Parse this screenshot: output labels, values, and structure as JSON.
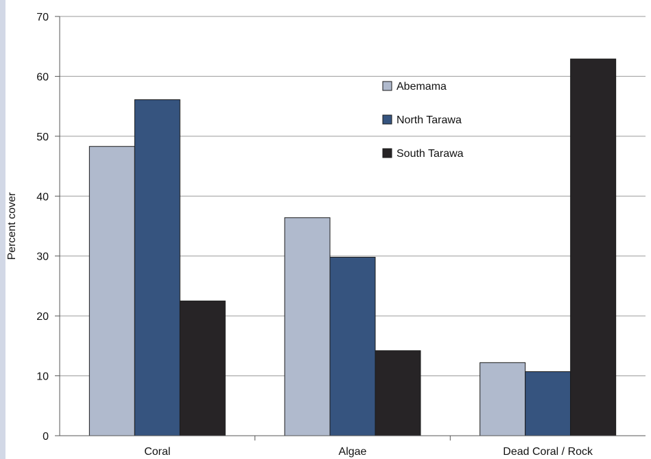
{
  "chart_data": {
    "type": "bar",
    "title": "",
    "xlabel": "",
    "ylabel": "Percent cover",
    "categories": [
      "Coral",
      "Algae",
      "Dead Coral / Rock"
    ],
    "series": [
      {
        "name": "Abemama",
        "color": "#b0bacd",
        "values": [
          48.3,
          36.4,
          12.2
        ]
      },
      {
        "name": "North Tarawa",
        "color": "#36547f",
        "values": [
          56.1,
          29.8,
          10.7
        ]
      },
      {
        "name": "South Tarawa",
        "color": "#272426",
        "values": [
          22.5,
          14.2,
          62.9
        ]
      }
    ],
    "ylim": [
      0,
      70
    ],
    "yticks": [
      0,
      10,
      20,
      30,
      40,
      50,
      60,
      70
    ],
    "grid": true,
    "legend": "top-right"
  }
}
